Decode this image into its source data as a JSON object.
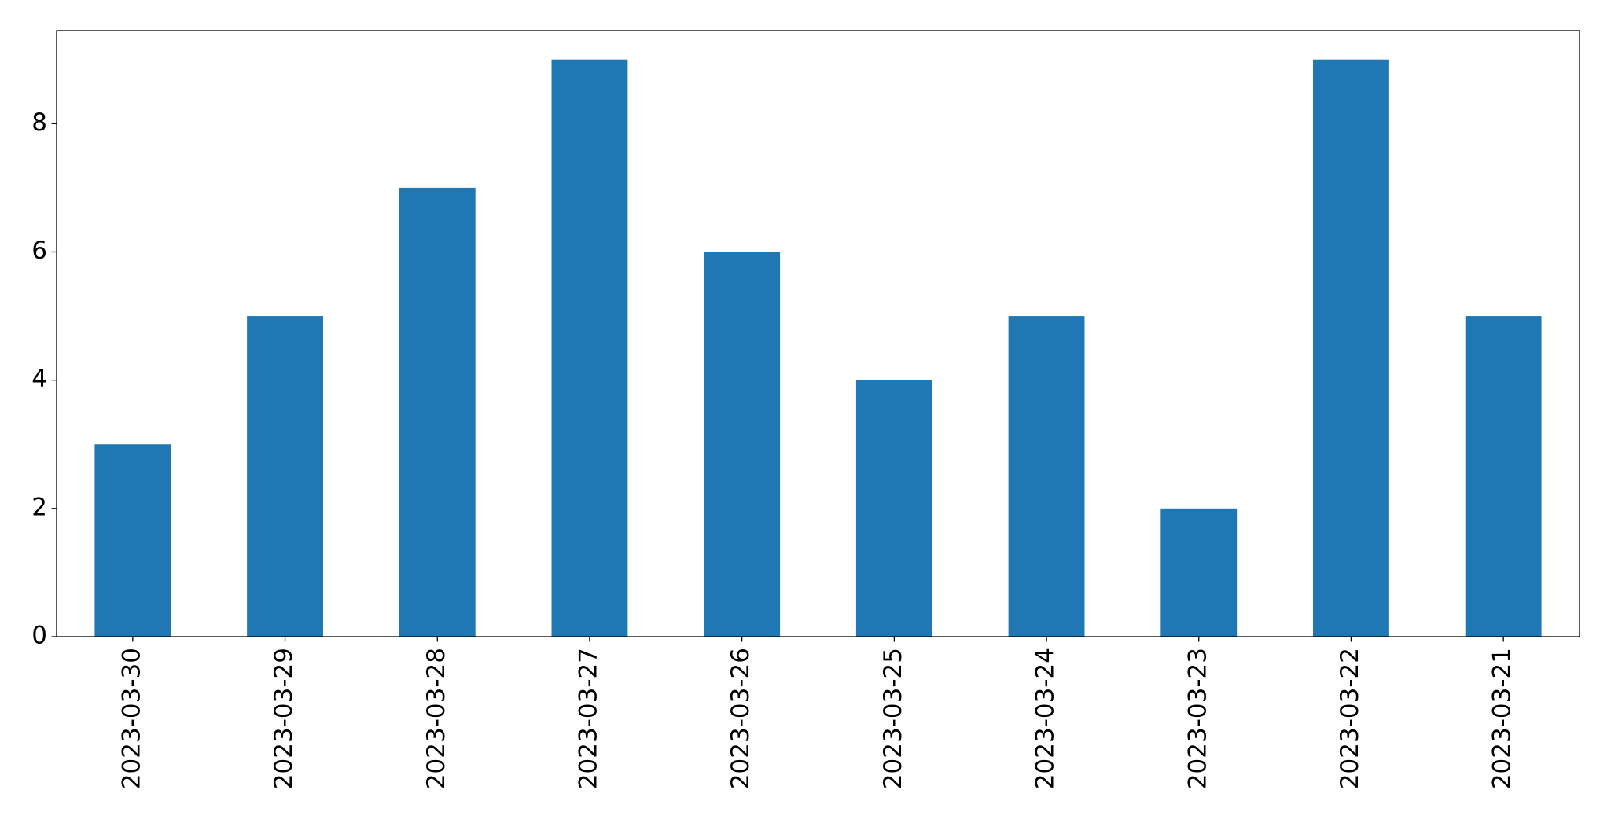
{
  "chart_data": {
    "type": "bar",
    "categories": [
      "2023-03-30",
      "2023-03-29",
      "2023-03-28",
      "2023-03-27",
      "2023-03-26",
      "2023-03-25",
      "2023-03-24",
      "2023-03-23",
      "2023-03-22",
      "2023-03-21"
    ],
    "values": [
      3,
      5,
      7,
      9,
      6,
      4,
      5,
      2,
      9,
      5
    ],
    "color": "#1f77b4",
    "ylim": [
      0,
      9.45
    ],
    "yticks": [
      0,
      2,
      4,
      6,
      8
    ],
    "grid": false
  }
}
